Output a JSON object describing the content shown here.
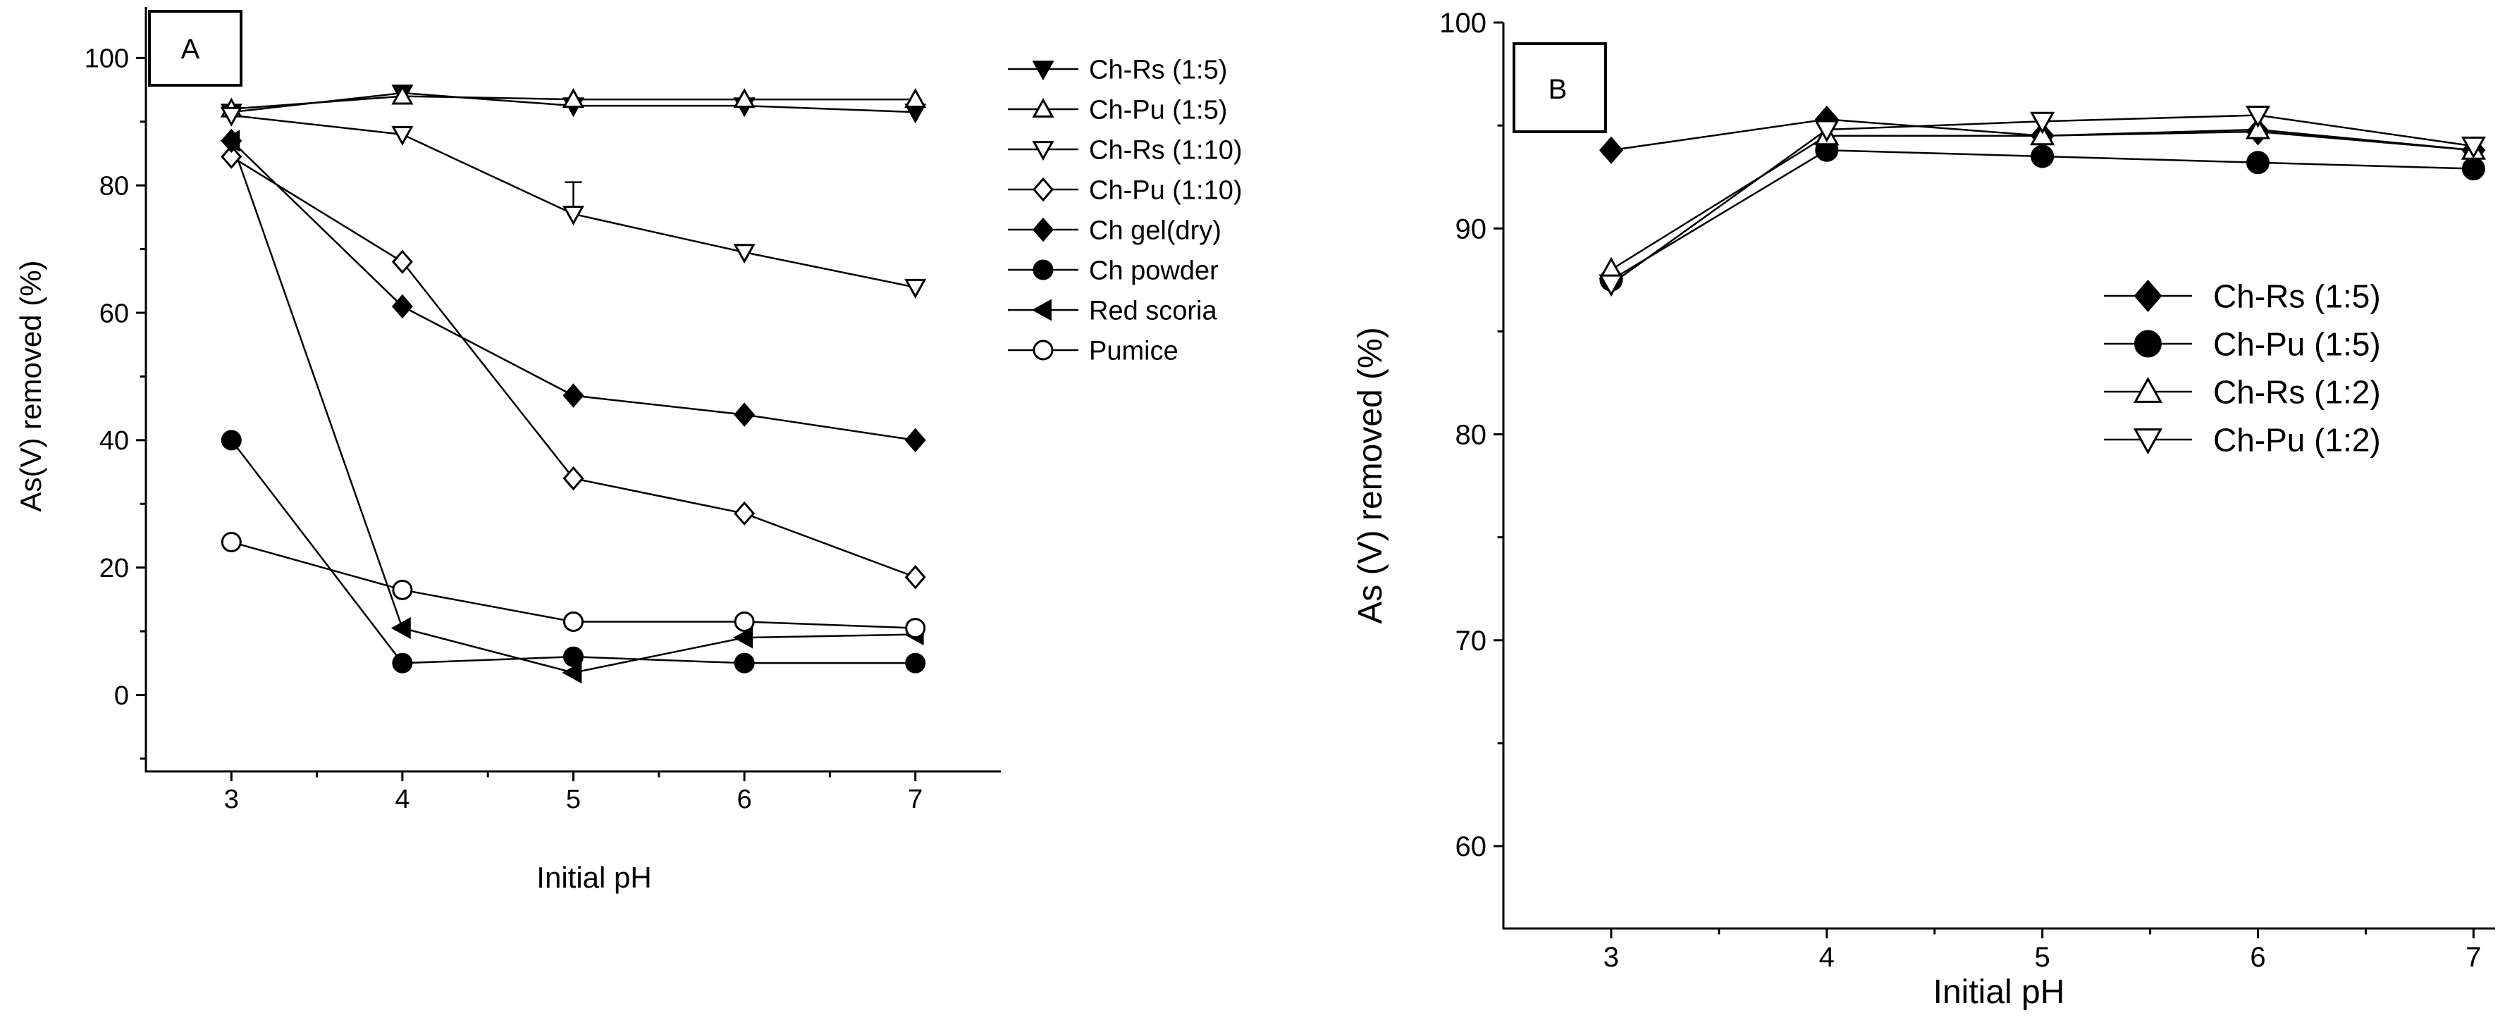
{
  "chart_data": [
    {
      "panel": "A",
      "type": "line",
      "panel_label": "A",
      "xlabel": "Initial pH",
      "ylabel": "As(V) removed (%)",
      "xlim": [
        2.5,
        7.5
      ],
      "ylim": [
        -12,
        108
      ],
      "xticks": [
        "3",
        "4",
        "5",
        "6",
        "7"
      ],
      "yticks": [
        "0",
        "20",
        "40",
        "60",
        "80",
        "100"
      ],
      "x": [
        3,
        4,
        5,
        6,
        7
      ],
      "legend_position": "top-right",
      "series": [
        {
          "name": "Ch-Rs (1:5)",
          "marker": "triangle-down-filled",
          "values": [
            91.5,
            94.5,
            92.5,
            92.5,
            91.5
          ]
        },
        {
          "name": "Ch-Pu (1:5)",
          "marker": "triangle-up-open",
          "values": [
            92,
            94,
            93.5,
            93.5,
            93.5
          ]
        },
        {
          "name": "Ch-Rs (1:10)",
          "marker": "triangle-down-open",
          "values": [
            91,
            88,
            75.5,
            69.5,
            64
          ],
          "error": [
            0,
            0,
            5,
            0,
            0
          ]
        },
        {
          "name": "Ch-Pu (1:10)",
          "marker": "diamond-open",
          "values": [
            84.5,
            68,
            34,
            28.5,
            18.5
          ]
        },
        {
          "name": "Ch gel(dry)",
          "marker": "diamond-filled",
          "values": [
            87,
            61,
            47,
            44,
            40
          ]
        },
        {
          "name": "Ch powder",
          "marker": "circle-filled",
          "values": [
            40,
            5,
            6,
            5,
            5
          ]
        },
        {
          "name": "Red scoria",
          "marker": "triangle-left-filled",
          "values": [
            87,
            10.5,
            3.5,
            9,
            9.5
          ]
        },
        {
          "name": "Pumice",
          "marker": "circle-open",
          "values": [
            24,
            16.5,
            11.5,
            11.5,
            10.5
          ]
        }
      ]
    },
    {
      "panel": "B",
      "type": "line",
      "panel_label": "B",
      "xlabel": "Initial pH",
      "ylabel": "As (V) removed (%)",
      "xlim": [
        2.5,
        7.1
      ],
      "ylim": [
        56,
        100
      ],
      "xticks": [
        "3",
        "4",
        "5",
        "6",
        "7"
      ],
      "yticks": [
        "60",
        "70",
        "80",
        "90",
        "100"
      ],
      "x": [
        3,
        4,
        5,
        6,
        7
      ],
      "legend_position": "right",
      "series": [
        {
          "name": "Ch-Rs (1:5)",
          "marker": "diamond-filled",
          "values": [
            93.8,
            95.3,
            94.5,
            94.7,
            93.8
          ]
        },
        {
          "name": "Ch-Pu (1:5)",
          "marker": "circle-filled",
          "values": [
            87.5,
            93.8,
            93.5,
            93.2,
            92.9
          ]
        },
        {
          "name": "Ch-Rs (1:2)",
          "marker": "triangle-up-open",
          "values": [
            88,
            94.5,
            94.5,
            94.8,
            93.8
          ]
        },
        {
          "name": "Ch-Pu (1:2)",
          "marker": "triangle-down-open",
          "values": [
            87.3,
            94.8,
            95.2,
            95.5,
            94
          ]
        }
      ]
    }
  ]
}
